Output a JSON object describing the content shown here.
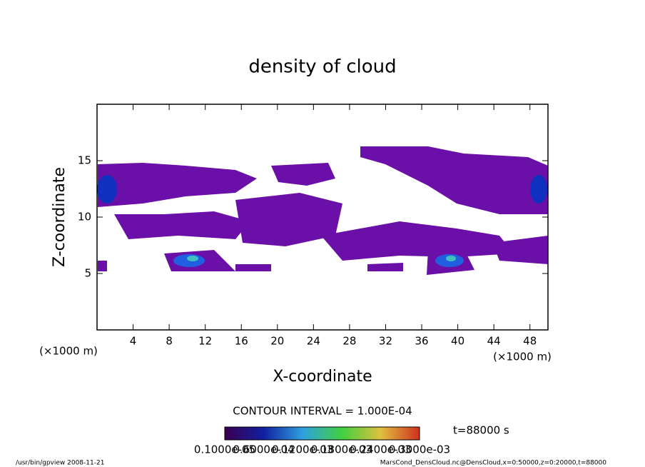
{
  "chart_data": {
    "type": "contour",
    "title": "density of cloud",
    "x_label": "X-coordinate",
    "y_label": "Z-coordinate",
    "x_unit": "(×1000 m)",
    "y_unit": "(×1000 m)",
    "xlim": [
      0,
      50
    ],
    "xticks": [
      4,
      8,
      12,
      16,
      20,
      24,
      28,
      32,
      36,
      40,
      44,
      48
    ],
    "ylim": [
      0,
      20
    ],
    "yticks": [
      5,
      10,
      15
    ],
    "contour_interval": "CONTOUR INTERVAL = 1.000E-04",
    "colorbar_labels": [
      "0.1000e-05",
      "0.6000e-04",
      "0.1200e-03",
      "0.1800e-03",
      "0.2400e-03",
      "0.3000e-03"
    ],
    "time_label": "t=88000 s",
    "footer_left": "/usr/bin/gpview   2008-11-21",
    "footer_right": "MarsCond_DensCloud.nc@DensCloud,x=0:50000,z=0:20000,t=88000"
  }
}
